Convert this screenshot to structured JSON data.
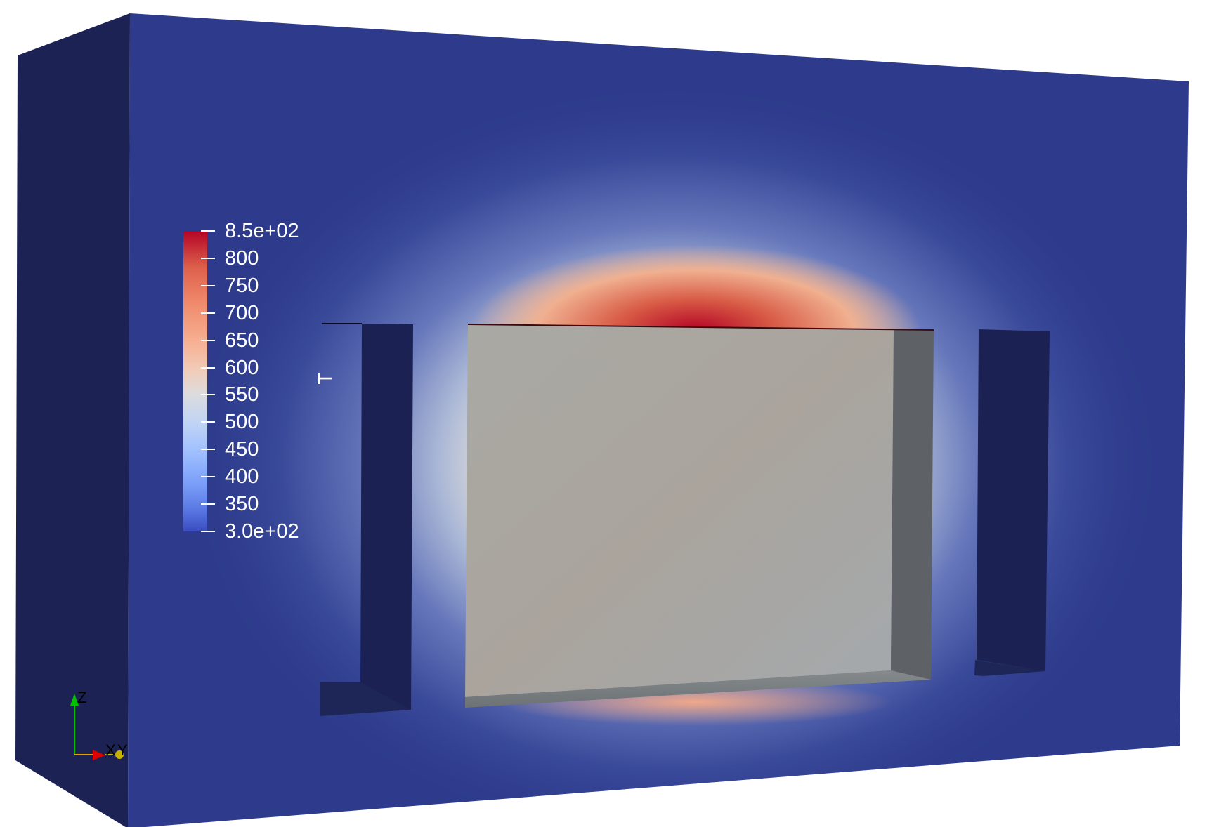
{
  "colorbar": {
    "title": "T",
    "ticks": [
      "8.5e+02",
      "800",
      "750",
      "700",
      "650",
      "600",
      "550",
      "500",
      "450",
      "400",
      "350",
      "3.0e+02"
    ],
    "range": [
      300,
      850
    ],
    "colormap": "Cool to Warm",
    "colors": {
      "high": "#b40426",
      "mid": "#dddcdc",
      "low": "#3b4cc0"
    }
  },
  "orientation_axes": {
    "z_label": "Z",
    "x_label": "X",
    "y_label": "Y",
    "colors": {
      "x": "#e00000",
      "y": "#e0c800",
      "z": "#00c000"
    }
  },
  "scene": {
    "colors": {
      "background": "#ffffff",
      "domain_front": "#2e3b8c",
      "domain_side": "#1c2254",
      "slot_inner": "#1b2152",
      "hot_block": "#a8a8a8",
      "hot_block_side": "#5e6266",
      "hot_block_bottom": "#747a7e"
    }
  }
}
